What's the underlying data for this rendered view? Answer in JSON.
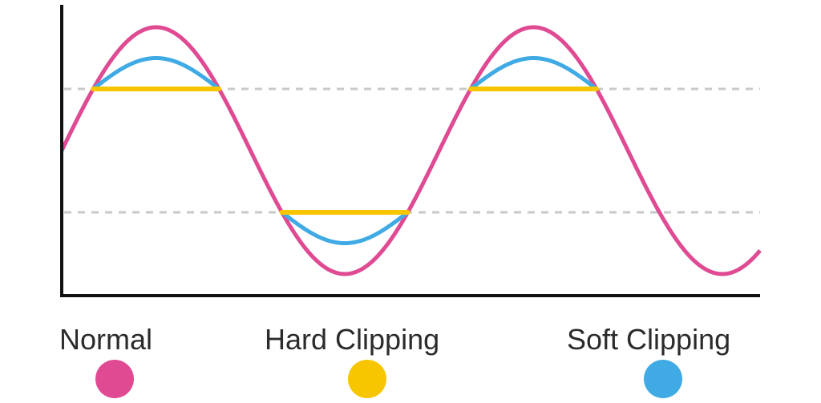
{
  "chart_data": {
    "type": "line",
    "title": "",
    "xlabel": "",
    "ylabel": "",
    "grid": false,
    "xlim": [
      0,
      1.85
    ],
    "ylim": [
      -1.2,
      1.2
    ],
    "clip_threshold": 0.5,
    "reference_lines": [
      0.5,
      -0.5
    ],
    "cycles": 1.85,
    "legend_position": "bottom",
    "series": [
      {
        "name": "Normal",
        "color": "#df4a93",
        "amplitude": 1.0,
        "function": "sine"
      },
      {
        "name": "Hard Clipping",
        "color": "#f7c600",
        "amplitude": 1.0,
        "function": "hard-clipped sine",
        "limit": 0.5
      },
      {
        "name": "Soft Clipping",
        "color": "#3faae4",
        "amplitude": 0.75,
        "function": "soft-clipped sine",
        "limit": 0.5
      }
    ],
    "axis_color": "#111111",
    "reference_line_color": "#c9c9c9"
  },
  "legend": {
    "items": [
      {
        "label": "Normal",
        "color": "#df4a93"
      },
      {
        "label": "Hard Clipping",
        "color": "#f7c600"
      },
      {
        "label": "Soft Clipping",
        "color": "#3faae4"
      }
    ]
  }
}
